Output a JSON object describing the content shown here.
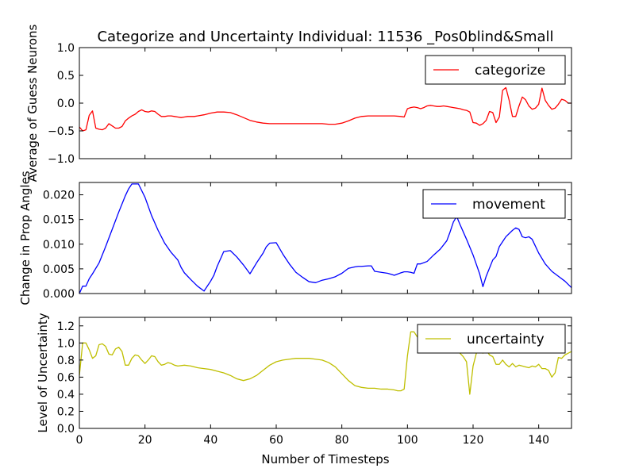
{
  "figure_title": "Categorize and Uncertainty Individual: 11536 _Pos0blind&Small",
  "chart_data": [
    {
      "type": "line",
      "ylabel": "Average of Guess Neurons",
      "xlabel": "",
      "xlim": [
        0,
        150
      ],
      "ylim": [
        -1.0,
        1.0
      ],
      "yticks": [
        -1.0,
        -0.5,
        0.0,
        0.5,
        1.0
      ],
      "ytick_labels": [
        "−1.0",
        "−0.5",
        "0.0",
        "0.5",
        "1.0"
      ],
      "xticks": [
        0,
        20,
        40,
        60,
        80,
        100,
        120,
        140
      ],
      "xtick_labels": [],
      "grid": false,
      "legend_position": "top-right",
      "series": [
        {
          "name": "categorize",
          "color": "#ff0000",
          "x": [
            0,
            1,
            2,
            3,
            4,
            5,
            6,
            7,
            8,
            9,
            10,
            11,
            12,
            13,
            14,
            15,
            16,
            17,
            18,
            19,
            20,
            21,
            22,
            23,
            24,
            25,
            26,
            27,
            28,
            29,
            30,
            31,
            32,
            33,
            34,
            35,
            36,
            38,
            40,
            42,
            44,
            46,
            48,
            50,
            52,
            54,
            56,
            58,
            60,
            62,
            64,
            66,
            68,
            70,
            72,
            74,
            76,
            78,
            80,
            82,
            84,
            86,
            88,
            90,
            92,
            94,
            96,
            98,
            99,
            100,
            101,
            102,
            103,
            104,
            105,
            106,
            107,
            108,
            109,
            110,
            111,
            112,
            113,
            114,
            115,
            116,
            117,
            118,
            119,
            120,
            121,
            122,
            123,
            124,
            125,
            126,
            127,
            128,
            129,
            130,
            131,
            132,
            133,
            134,
            135,
            136,
            137,
            138,
            139,
            140,
            141,
            142,
            143,
            144,
            145,
            146,
            147,
            148,
            149,
            150
          ],
          "y": [
            -0.43,
            -0.5,
            -0.48,
            -0.22,
            -0.14,
            -0.45,
            -0.47,
            -0.48,
            -0.45,
            -0.37,
            -0.41,
            -0.45,
            -0.45,
            -0.42,
            -0.32,
            -0.27,
            -0.23,
            -0.2,
            -0.15,
            -0.12,
            -0.15,
            -0.16,
            -0.14,
            -0.15,
            -0.2,
            -0.24,
            -0.24,
            -0.23,
            -0.23,
            -0.24,
            -0.25,
            -0.26,
            -0.25,
            -0.24,
            -0.24,
            -0.24,
            -0.23,
            -0.21,
            -0.18,
            -0.16,
            -0.16,
            -0.17,
            -0.21,
            -0.26,
            -0.31,
            -0.34,
            -0.36,
            -0.37,
            -0.37,
            -0.37,
            -0.37,
            -0.37,
            -0.37,
            -0.37,
            -0.37,
            -0.37,
            -0.38,
            -0.38,
            -0.36,
            -0.32,
            -0.27,
            -0.24,
            -0.23,
            -0.23,
            -0.23,
            -0.23,
            -0.23,
            -0.24,
            -0.25,
            -0.1,
            -0.08,
            -0.07,
            -0.08,
            -0.1,
            -0.08,
            -0.05,
            -0.04,
            -0.05,
            -0.06,
            -0.06,
            -0.05,
            -0.06,
            -0.07,
            -0.08,
            -0.09,
            -0.1,
            -0.12,
            -0.13,
            -0.16,
            -0.35,
            -0.36,
            -0.4,
            -0.37,
            -0.31,
            -0.15,
            -0.17,
            -0.35,
            -0.25,
            0.23,
            0.28,
            0.05,
            -0.24,
            -0.24,
            -0.05,
            0.11,
            0.06,
            -0.05,
            -0.11,
            -0.09,
            -0.02,
            0.27,
            0.05,
            -0.04,
            -0.11,
            -0.09,
            -0.02,
            0.07,
            0.05,
            0.0,
            0.0
          ]
        }
      ]
    },
    {
      "type": "line",
      "ylabel": "Change in Prop Angles",
      "xlabel": "",
      "xlim": [
        0,
        150
      ],
      "ylim": [
        0.0,
        0.0225
      ],
      "yticks": [
        0.0,
        0.005,
        0.01,
        0.015,
        0.02
      ],
      "ytick_labels": [
        "0.000",
        "0.005",
        "0.010",
        "0.015",
        "0.020"
      ],
      "xticks": [
        0,
        20,
        40,
        60,
        80,
        100,
        120,
        140
      ],
      "xtick_labels": [],
      "grid": false,
      "legend_position": "top-right",
      "series": [
        {
          "name": "movement",
          "color": "#0000ff",
          "x": [
            0,
            1,
            2,
            3,
            4,
            6,
            8,
            10,
            12,
            14,
            15,
            16,
            18,
            20,
            22,
            24,
            26,
            28,
            30,
            31,
            32,
            34,
            36,
            38,
            39,
            40,
            41,
            42,
            44,
            46,
            48,
            50,
            52,
            54,
            56,
            57,
            58,
            60,
            62,
            64,
            66,
            68,
            70,
            72,
            74,
            76,
            78,
            80,
            82,
            84,
            85,
            86,
            88,
            89,
            90,
            92,
            94,
            96,
            98,
            99,
            100,
            101,
            102,
            103,
            104,
            106,
            108,
            110,
            112,
            113,
            114,
            115,
            116,
            118,
            120,
            122,
            123,
            124,
            126,
            127,
            128,
            130,
            132,
            133,
            134,
            135,
            136,
            137,
            138,
            140,
            142,
            144,
            146,
            148,
            150
          ],
          "y": [
            0.0,
            0.0015,
            0.0015,
            0.003,
            0.004,
            0.0062,
            0.0095,
            0.013,
            0.0165,
            0.0198,
            0.0212,
            0.0222,
            0.0222,
            0.0195,
            0.0158,
            0.0128,
            0.0102,
            0.0083,
            0.0068,
            0.0053,
            0.0042,
            0.0028,
            0.0015,
            0.0005,
            0.0015,
            0.0025,
            0.0037,
            0.0055,
            0.0085,
            0.0087,
            0.0074,
            0.0058,
            0.004,
            0.0062,
            0.0082,
            0.0095,
            0.0102,
            0.0103,
            0.008,
            0.006,
            0.0043,
            0.0033,
            0.0024,
            0.0022,
            0.0027,
            0.003,
            0.0034,
            0.0041,
            0.0051,
            0.0054,
            0.0055,
            0.0055,
            0.0056,
            0.0056,
            0.0045,
            0.0043,
            0.0041,
            0.0037,
            0.0042,
            0.0044,
            0.0044,
            0.0043,
            0.0041,
            0.006,
            0.006,
            0.0065,
            0.0078,
            0.009,
            0.0107,
            0.0125,
            0.0145,
            0.0156,
            0.014,
            0.011,
            0.0078,
            0.004,
            0.0014,
            0.0035,
            0.0068,
            0.0075,
            0.0095,
            0.0115,
            0.0128,
            0.0133,
            0.013,
            0.0115,
            0.0113,
            0.0115,
            0.011,
            0.0082,
            0.006,
            0.0045,
            0.0035,
            0.0025,
            0.0012
          ]
        }
      ]
    },
    {
      "type": "line",
      "ylabel": "Level of Uncertainty",
      "xlabel": "Number of Timesteps",
      "xlim": [
        0,
        150
      ],
      "ylim": [
        0.0,
        1.3
      ],
      "yticks": [
        0.0,
        0.2,
        0.4,
        0.6,
        0.8,
        1.0,
        1.2
      ],
      "ytick_labels": [
        "0.0",
        "0.2",
        "0.4",
        "0.6",
        "0.8",
        "1.0",
        "1.2"
      ],
      "xticks": [
        0,
        20,
        40,
        60,
        80,
        100,
        120,
        140
      ],
      "xtick_labels": [
        "0",
        "20",
        "40",
        "60",
        "80",
        "100",
        "120",
        "140"
      ],
      "grid": false,
      "legend_position": "top-right",
      "series": [
        {
          "name": "uncertainty",
          "color": "#bfbf00",
          "x": [
            0,
            1,
            2,
            3,
            4,
            5,
            6,
            7,
            8,
            9,
            10,
            11,
            12,
            13,
            14,
            15,
            16,
            17,
            18,
            19,
            20,
            21,
            22,
            23,
            24,
            25,
            26,
            27,
            28,
            29,
            30,
            32,
            34,
            36,
            38,
            40,
            42,
            44,
            46,
            48,
            50,
            52,
            54,
            56,
            58,
            60,
            62,
            64,
            66,
            68,
            70,
            72,
            74,
            76,
            78,
            80,
            82,
            84,
            86,
            88,
            90,
            92,
            94,
            96,
            97,
            98,
            99,
            100,
            101,
            102,
            103,
            104,
            106,
            108,
            110,
            111,
            112,
            113,
            114,
            115,
            116,
            117,
            118,
            119,
            120,
            121,
            122,
            123,
            124,
            125,
            126,
            127,
            128,
            129,
            130,
            131,
            132,
            133,
            134,
            135,
            136,
            137,
            138,
            139,
            140,
            141,
            142,
            143,
            144,
            145,
            146,
            147,
            148,
            150
          ],
          "y": [
            0.62,
            1.0,
            1.0,
            0.92,
            0.82,
            0.85,
            0.98,
            0.99,
            0.96,
            0.87,
            0.86,
            0.93,
            0.95,
            0.9,
            0.74,
            0.74,
            0.82,
            0.86,
            0.85,
            0.8,
            0.76,
            0.8,
            0.85,
            0.84,
            0.78,
            0.74,
            0.75,
            0.77,
            0.76,
            0.74,
            0.73,
            0.74,
            0.73,
            0.71,
            0.7,
            0.69,
            0.67,
            0.65,
            0.62,
            0.58,
            0.56,
            0.58,
            0.62,
            0.68,
            0.74,
            0.78,
            0.8,
            0.81,
            0.82,
            0.82,
            0.82,
            0.81,
            0.8,
            0.77,
            0.72,
            0.64,
            0.56,
            0.5,
            0.48,
            0.47,
            0.47,
            0.46,
            0.46,
            0.45,
            0.44,
            0.44,
            0.46,
            0.85,
            1.13,
            1.13,
            1.07,
            1.08,
            1.1,
            1.09,
            1.05,
            1.0,
            0.98,
            0.97,
            0.95,
            0.92,
            0.88,
            0.84,
            0.78,
            0.4,
            0.73,
            0.88,
            0.9,
            0.88,
            0.92,
            0.86,
            0.84,
            0.75,
            0.75,
            0.8,
            0.75,
            0.72,
            0.76,
            0.72,
            0.74,
            0.73,
            0.72,
            0.71,
            0.73,
            0.72,
            0.75,
            0.7,
            0.7,
            0.68,
            0.6,
            0.65,
            0.83,
            0.82,
            0.86,
            0.9
          ]
        }
      ]
    }
  ]
}
